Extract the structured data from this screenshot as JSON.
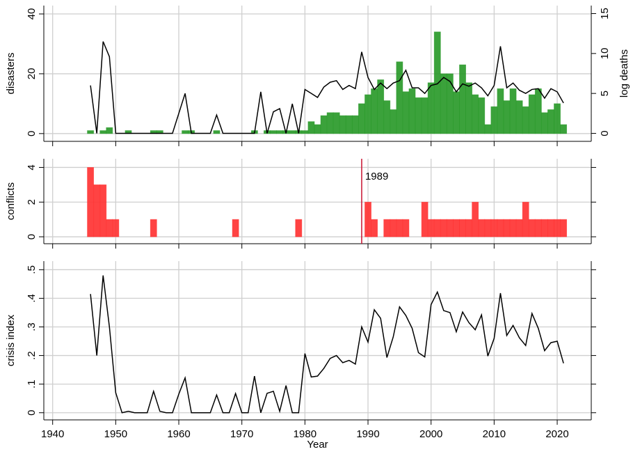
{
  "chart_data": [
    {
      "type": "combo",
      "ylabel": "disasters",
      "y2label": "log deaths",
      "x": [
        1946,
        1947,
        1948,
        1949,
        1950,
        1951,
        1952,
        1953,
        1954,
        1955,
        1956,
        1957,
        1958,
        1959,
        1960,
        1961,
        1962,
        1963,
        1964,
        1965,
        1966,
        1967,
        1968,
        1969,
        1970,
        1971,
        1972,
        1973,
        1974,
        1975,
        1976,
        1977,
        1978,
        1979,
        1980,
        1981,
        1982,
        1983,
        1984,
        1985,
        1986,
        1987,
        1988,
        1989,
        1990,
        1991,
        1992,
        1993,
        1994,
        1995,
        1996,
        1997,
        1998,
        1999,
        2000,
        2001,
        2002,
        2003,
        2004,
        2005,
        2006,
        2007,
        2008,
        2009,
        2010,
        2011,
        2012,
        2013,
        2014,
        2015,
        2016,
        2017,
        2018,
        2019,
        2020,
        2021
      ],
      "series": [
        {
          "type": "bar",
          "color": "#2a9a2a",
          "values": [
            1,
            0,
            1,
            2,
            0,
            0,
            1,
            0,
            0,
            0,
            1,
            1,
            0,
            0,
            0,
            1,
            1,
            0,
            0,
            0,
            1,
            0,
            0,
            0,
            0,
            0,
            1,
            0,
            1,
            1,
            1,
            1,
            1,
            1,
            1,
            4,
            3,
            6,
            7,
            7,
            6,
            6,
            6,
            10,
            13,
            15,
            18,
            11,
            8,
            24,
            14,
            15,
            12,
            12,
            17,
            34,
            20,
            20,
            14,
            23,
            17,
            13,
            12,
            3,
            9,
            15,
            11,
            15,
            11,
            9,
            13,
            15,
            7,
            8,
            10,
            3
          ]
        },
        {
          "type": "line",
          "axis": "y2",
          "color": "#000000",
          "values": [
            6.0,
            0,
            11.5,
            9.6,
            0,
            0,
            0,
            0,
            0,
            0,
            0,
            0,
            0,
            0,
            2.5,
            5.0,
            0,
            0,
            0,
            0,
            2.3,
            0,
            0,
            0,
            0,
            0,
            0,
            5.2,
            0,
            2.7,
            3.1,
            0,
            3.7,
            0,
            5.5,
            5.0,
            4.5,
            5.8,
            6.4,
            6.6,
            5.5,
            6.0,
            5.6,
            10.2,
            7.0,
            5.5,
            6.3,
            5.6,
            6.3,
            6.6,
            7.9,
            5.7,
            5.7,
            5.0,
            6.0,
            6.2,
            7.0,
            6.5,
            5.2,
            6.2,
            5.9,
            6.3,
            5.7,
            4.7,
            6.0,
            10.9,
            5.7,
            6.3,
            5.4,
            5.0,
            5.5,
            5.6,
            4.4,
            5.6,
            5.2,
            3.8
          ]
        }
      ],
      "xlim": [
        1938.6,
        2025.4
      ],
      "xticks": [
        1940,
        1950,
        1960,
        1970,
        1980,
        1990,
        2000,
        2010,
        2020
      ],
      "ylim": [
        -2.6,
        42.8
      ],
      "yticks": [
        0,
        20,
        40
      ],
      "y2lim": [
        -1,
        16
      ],
      "y2ticks": [
        0,
        5,
        10,
        15
      ],
      "grid": true
    },
    {
      "type": "bar",
      "ylabel": "conflicts",
      "x": [
        1946,
        1947,
        1948,
        1949,
        1950,
        1951,
        1952,
        1953,
        1954,
        1955,
        1956,
        1957,
        1958,
        1959,
        1960,
        1961,
        1962,
        1963,
        1964,
        1965,
        1966,
        1967,
        1968,
        1969,
        1970,
        1971,
        1972,
        1973,
        1974,
        1975,
        1976,
        1977,
        1978,
        1979,
        1980,
        1981,
        1982,
        1983,
        1984,
        1985,
        1986,
        1987,
        1988,
        1989,
        1990,
        1991,
        1992,
        1993,
        1994,
        1995,
        1996,
        1997,
        1998,
        1999,
        2000,
        2001,
        2002,
        2003,
        2004,
        2005,
        2006,
        2007,
        2008,
        2009,
        2010,
        2011,
        2012,
        2013,
        2014,
        2015,
        2016,
        2017,
        2018,
        2019,
        2020,
        2021
      ],
      "series": [
        {
          "type": "bar",
          "color": "#ff3333",
          "values": [
            4,
            3,
            3,
            1,
            1,
            0,
            0,
            0,
            0,
            0,
            1,
            0,
            0,
            0,
            0,
            0,
            0,
            0,
            0,
            0,
            0,
            0,
            0,
            1,
            0,
            0,
            0,
            0,
            0,
            0,
            0,
            0,
            0,
            1,
            0,
            0,
            0,
            0,
            0,
            0,
            0,
            0,
            0,
            0,
            2,
            1,
            0,
            1,
            1,
            1,
            1,
            0,
            0,
            2,
            1,
            1,
            1,
            1,
            1,
            1,
            1,
            2,
            1,
            1,
            1,
            1,
            1,
            1,
            1,
            2,
            1,
            1,
            1,
            1,
            1,
            1
          ]
        }
      ],
      "annotations": [
        {
          "x": 1989,
          "text": "1989",
          "color": "#c8102e"
        }
      ],
      "xlim": [
        1938.6,
        2025.4
      ],
      "xticks": [
        1940,
        1950,
        1960,
        1970,
        1980,
        1990,
        2000,
        2010,
        2020
      ],
      "ylim": [
        -0.4,
        4.5
      ],
      "yticks": [
        0,
        2,
        4
      ],
      "grid": true
    },
    {
      "type": "line",
      "ylabel": "crisis index",
      "xlabel": "Year",
      "x": [
        1946,
        1947,
        1948,
        1949,
        1950,
        1951,
        1952,
        1953,
        1954,
        1955,
        1956,
        1957,
        1958,
        1959,
        1960,
        1961,
        1962,
        1963,
        1964,
        1965,
        1966,
        1967,
        1968,
        1969,
        1970,
        1971,
        1972,
        1973,
        1974,
        1975,
        1976,
        1977,
        1978,
        1979,
        1980,
        1981,
        1982,
        1983,
        1984,
        1985,
        1986,
        1987,
        1988,
        1989,
        1990,
        1991,
        1992,
        1993,
        1994,
        1995,
        1996,
        1997,
        1998,
        1999,
        2000,
        2001,
        2002,
        2003,
        2004,
        2005,
        2006,
        2007,
        2008,
        2009,
        2010,
        2011,
        2012,
        2013,
        2014,
        2015,
        2016,
        2017,
        2018,
        2019,
        2020,
        2021
      ],
      "series": [
        {
          "type": "line",
          "color": "#000000",
          "values": [
            0.415,
            0.2,
            0.48,
            0.3,
            0.07,
            0,
            0.005,
            0,
            0,
            0,
            0.075,
            0.005,
            0,
            0,
            0.065,
            0.122,
            0,
            0,
            0,
            0,
            0.062,
            0,
            0,
            0.067,
            0,
            0,
            0.128,
            0,
            0.068,
            0.075,
            0.005,
            0.095,
            0,
            0,
            0.207,
            0.125,
            0.128,
            0.155,
            0.19,
            0.2,
            0.175,
            0.183,
            0.17,
            0.3,
            0.247,
            0.36,
            0.33,
            0.193,
            0.265,
            0.37,
            0.34,
            0.295,
            0.21,
            0.195,
            0.378,
            0.422,
            0.357,
            0.35,
            0.283,
            0.352,
            0.315,
            0.29,
            0.342,
            0.198,
            0.26,
            0.418,
            0.27,
            0.305,
            0.262,
            0.235,
            0.347,
            0.295,
            0.217,
            0.245,
            0.25,
            0.173
          ]
        }
      ],
      "xlim": [
        1938.6,
        2025.4
      ],
      "xticks": [
        1940,
        1950,
        1960,
        1970,
        1980,
        1990,
        2000,
        2010,
        2020
      ],
      "ylim": [
        -0.025,
        0.53
      ],
      "yticks": [
        0,
        {
          "value": 0.1,
          "label": ".1"
        },
        {
          "value": 0.2,
          "label": ".2"
        },
        {
          "value": 0.3,
          "label": ".3"
        },
        {
          "value": 0.4,
          "label": ".4"
        },
        {
          "value": 0.5,
          "label": ".5"
        }
      ],
      "grid": true
    }
  ]
}
